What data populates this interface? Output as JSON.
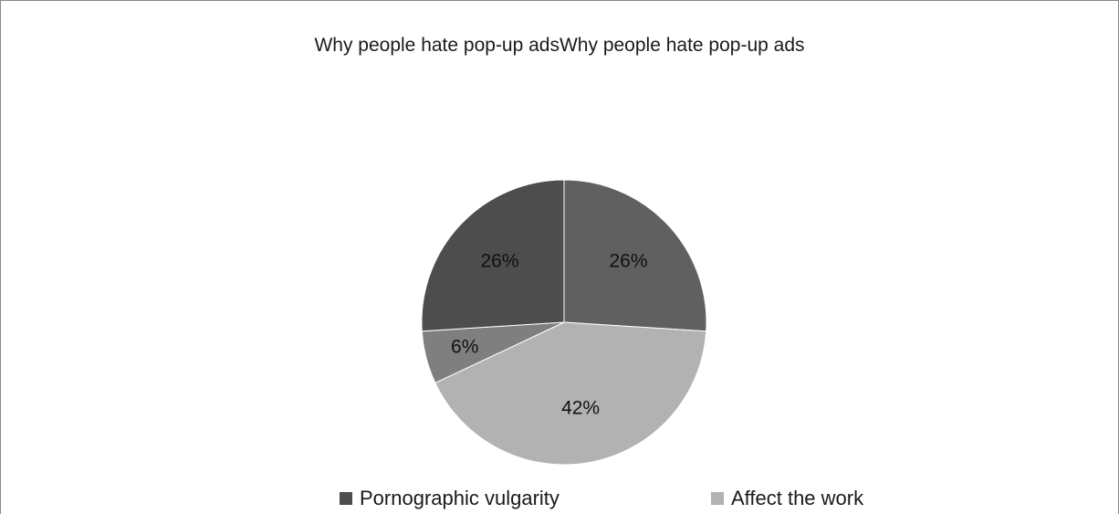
{
  "chart_data": {
    "type": "pie",
    "title": "Why people hate pop-up adsWhy people hate pop-up ads",
    "slices": [
      {
        "label": "",
        "value": 26,
        "display": "26%",
        "color": "#606060"
      },
      {
        "label": "Affect the work",
        "value": 42,
        "display": "42%",
        "color": "#b2b2b2"
      },
      {
        "label": "",
        "value": 6,
        "display": "6%",
        "color": "#7f7f7f"
      },
      {
        "label": "Pornographic vulgarity",
        "value": 26,
        "display": "26%",
        "color": "#4d4d4d"
      }
    ],
    "legend": {
      "placement": "bottom",
      "entries": [
        {
          "label": "Pornographic vulgarity",
          "color": "#4d4d4d"
        },
        {
          "label": "Affect the work",
          "color": "#b2b2b2"
        }
      ]
    }
  }
}
